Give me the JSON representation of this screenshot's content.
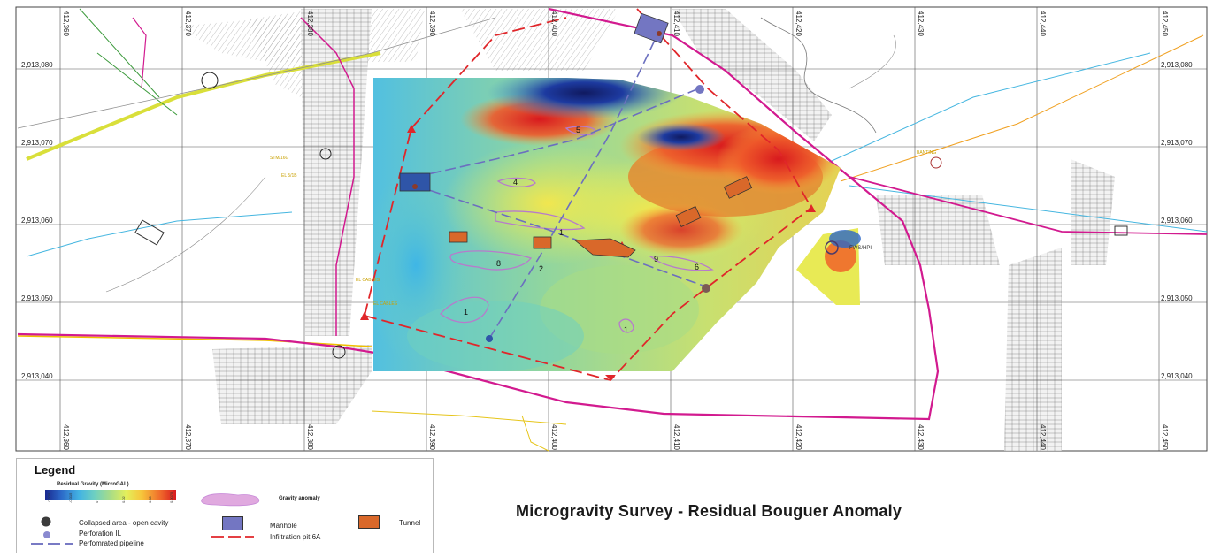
{
  "map": {
    "easting_labels": [
      "412,360",
      "412,370",
      "412,380",
      "412,390",
      "412,400",
      "412,410",
      "412,420",
      "412,430",
      "412,440",
      "412,450"
    ],
    "northing_labels": [
      "2,913,080",
      "2,913,070",
      "2,913,060",
      "2,913,050",
      "2,913,040"
    ],
    "anomaly_numbers": [
      "1",
      "1",
      "1",
      "2",
      "4",
      "5",
      "6",
      "8",
      "9"
    ],
    "annotations": [
      "FWS/HPI",
      "STM/16G",
      "EL 5/1B",
      "EL CABLES",
      "EL CABLES",
      "BANTING"
    ],
    "colors": {
      "infiltration_pit": "#e0262a",
      "pipeline": "#6b6fbf",
      "road_magenta": "#d21a8f",
      "gravity_anomaly": "#c88ad8"
    }
  },
  "legend": {
    "title": "Legend",
    "gradient_label": "Residual Gravity (MicroGAL)",
    "gradient_ticks": [
      "-0.025",
      "-0.015",
      "0",
      "0.02",
      "0.05",
      "0.0075"
    ],
    "gravity_anomaly": "Gravity anomaly",
    "collapsed_area": "Collapsed area - open cavity",
    "perforation": "Perforation IL",
    "pipeline": "Perfomrated pipeline",
    "manhole": "Manhole",
    "infiltration_pit": "Infiltration pit 6A",
    "tunnel": "Tunnel"
  },
  "title": "Microgravity Survey - Residual Bouguer Anomaly"
}
